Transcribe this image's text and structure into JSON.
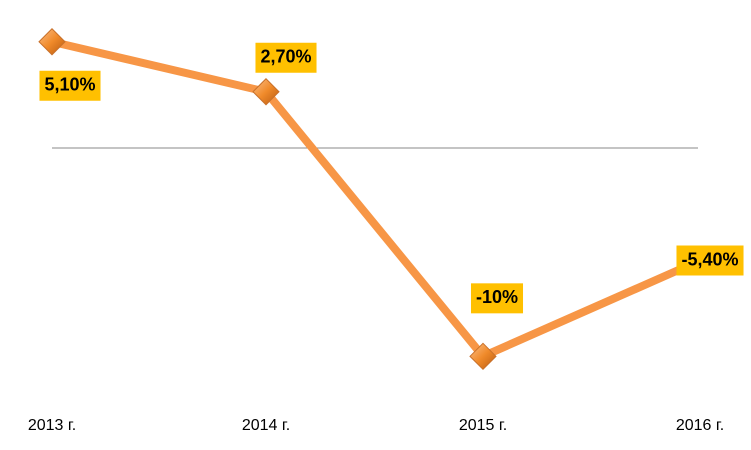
{
  "chart_data": {
    "type": "line",
    "categories": [
      "2013 г.",
      "2014 г.",
      "2015 г.",
      "2016 г."
    ],
    "values": [
      5.1,
      2.7,
      -10,
      -5.4
    ],
    "value_labels": [
      "5,10%",
      "2,70%",
      "-10%",
      "-5,40%"
    ],
    "color": "#f79646",
    "ylim": [
      -12,
      6
    ]
  }
}
